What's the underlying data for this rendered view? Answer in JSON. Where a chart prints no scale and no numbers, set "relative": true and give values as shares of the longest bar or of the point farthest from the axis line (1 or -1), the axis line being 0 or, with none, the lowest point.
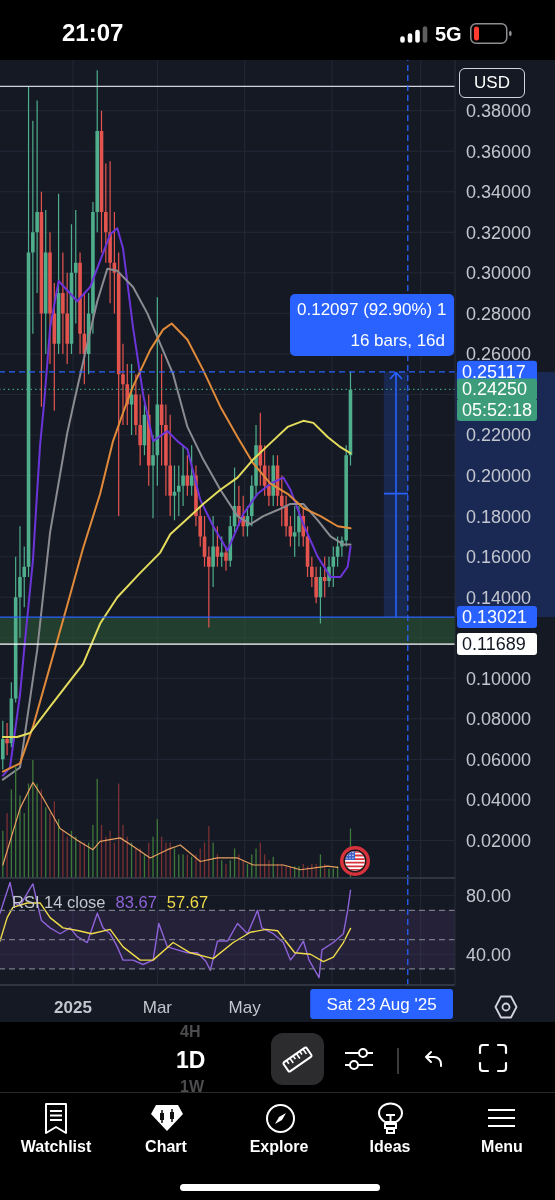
{
  "chart_data": [
    {
      "type": "other",
      "annotations": [
        "21:07",
        "5G"
      ]
    },
    {
      "type": "candlestick",
      "x": [
        "2024-11-13",
        "2024-11-16",
        "2024-11-19",
        "2024-11-22",
        "2024-11-25",
        "2024-11-28",
        "2024-12-01",
        "2024-12-04",
        "2024-12-07",
        "2024-12-10",
        "2024-12-13",
        "2024-12-16",
        "2024-12-19",
        "2024-12-22",
        "2024-12-25",
        "2024-12-28",
        "2024-12-31",
        "2025-01-03",
        "2025-01-06",
        "2025-01-09",
        "2025-01-12",
        "2025-01-15",
        "2025-01-18",
        "2025-01-21",
        "2025-01-24",
        "2025-01-27",
        "2025-01-30",
        "2025-02-02",
        "2025-02-05",
        "2025-02-08",
        "2025-02-11",
        "2025-02-14",
        "2025-02-17",
        "2025-02-20",
        "2025-02-23",
        "2025-02-26",
        "2025-03-01",
        "2025-03-04",
        "2025-03-07",
        "2025-03-10",
        "2025-03-13",
        "2025-03-16",
        "2025-03-19",
        "2025-03-22",
        "2025-03-25",
        "2025-03-28",
        "2025-03-31",
        "2025-04-03",
        "2025-04-06",
        "2025-04-09",
        "2025-04-12",
        "2025-04-15",
        "2025-04-18",
        "2025-04-21",
        "2025-04-24",
        "2025-04-27",
        "2025-04-30",
        "2025-05-03",
        "2025-05-06",
        "2025-05-09",
        "2025-05-12",
        "2025-05-15",
        "2025-05-18",
        "2025-05-21",
        "2025-05-24",
        "2025-05-27",
        "2025-05-30",
        "2025-06-02",
        "2025-06-05",
        "2025-06-08",
        "2025-06-11",
        "2025-06-14",
        "2025-06-17",
        "2025-06-20",
        "2025-06-23",
        "2025-06-26",
        "2025-06-29",
        "2025-07-02",
        "2025-07-05",
        "2025-07-08",
        "2025-07-11",
        "2025-07-14"
      ],
      "ohlc": [
        [
          0.06,
          0.079,
          0.055,
          0.07
        ],
        [
          0.07,
          0.078,
          0.062,
          0.068
        ],
        [
          0.068,
          0.098,
          0.066,
          0.09
        ],
        [
          0.09,
          0.16,
          0.088,
          0.14
        ],
        [
          0.14,
          0.175,
          0.12,
          0.15
        ],
        [
          0.15,
          0.165,
          0.135,
          0.155
        ],
        [
          0.155,
          0.392,
          0.15,
          0.31
        ],
        [
          0.31,
          0.375,
          0.27,
          0.32
        ],
        [
          0.32,
          0.385,
          0.29,
          0.33
        ],
        [
          0.33,
          0.34,
          0.234,
          0.28
        ],
        [
          0.28,
          0.331,
          0.26,
          0.31
        ],
        [
          0.31,
          0.32,
          0.255,
          0.28
        ],
        [
          0.28,
          0.295,
          0.232,
          0.265
        ],
        [
          0.265,
          0.339,
          0.26,
          0.29
        ],
        [
          0.29,
          0.31,
          0.26,
          0.28
        ],
        [
          0.28,
          0.3,
          0.255,
          0.265
        ],
        [
          0.265,
          0.324,
          0.26,
          0.3
        ],
        [
          0.3,
          0.331,
          0.275,
          0.305
        ],
        [
          0.305,
          0.31,
          0.26,
          0.27
        ],
        [
          0.27,
          0.29,
          0.245,
          0.26
        ],
        [
          0.26,
          0.29,
          0.25,
          0.28
        ],
        [
          0.28,
          0.335,
          0.27,
          0.33
        ],
        [
          0.33,
          0.4,
          0.32,
          0.37
        ],
        [
          0.37,
          0.38,
          0.31,
          0.33
        ],
        [
          0.33,
          0.354,
          0.305,
          0.32
        ],
        [
          0.32,
          0.355,
          0.285,
          0.305
        ],
        [
          0.305,
          0.33,
          0.28,
          0.3
        ],
        [
          0.3,
          0.31,
          0.18,
          0.25
        ],
        [
          0.25,
          0.265,
          0.225,
          0.245
        ],
        [
          0.245,
          0.255,
          0.225,
          0.235
        ],
        [
          0.235,
          0.255,
          0.22,
          0.24
        ],
        [
          0.24,
          0.25,
          0.22,
          0.225
        ],
        [
          0.225,
          0.24,
          0.205,
          0.215
        ],
        [
          0.215,
          0.235,
          0.21,
          0.23
        ],
        [
          0.23,
          0.24,
          0.195,
          0.205
        ],
        [
          0.205,
          0.22,
          0.179,
          0.21
        ],
        [
          0.21,
          0.288,
          0.195,
          0.235
        ],
        [
          0.235,
          0.26,
          0.205,
          0.225
        ],
        [
          0.225,
          0.235,
          0.19,
          0.205
        ],
        [
          0.205,
          0.23,
          0.18,
          0.19
        ],
        [
          0.19,
          0.205,
          0.178,
          0.192
        ],
        [
          0.192,
          0.205,
          0.18,
          0.195
        ],
        [
          0.195,
          0.215,
          0.185,
          0.2
        ],
        [
          0.2,
          0.21,
          0.19,
          0.195
        ],
        [
          0.195,
          0.215,
          0.19,
          0.2
        ],
        [
          0.2,
          0.205,
          0.175,
          0.18
        ],
        [
          0.18,
          0.185,
          0.165,
          0.17
        ],
        [
          0.17,
          0.18,
          0.155,
          0.16
        ],
        [
          0.16,
          0.165,
          0.125,
          0.155
        ],
        [
          0.155,
          0.18,
          0.145,
          0.165
        ],
        [
          0.165,
          0.175,
          0.155,
          0.16
        ],
        [
          0.16,
          0.17,
          0.155,
          0.162
        ],
        [
          0.162,
          0.165,
          0.153,
          0.158
        ],
        [
          0.158,
          0.18,
          0.155,
          0.175
        ],
        [
          0.175,
          0.204,
          0.172,
          0.185
        ],
        [
          0.185,
          0.195,
          0.175,
          0.18
        ],
        [
          0.18,
          0.19,
          0.17,
          0.175
        ],
        [
          0.175,
          0.185,
          0.17,
          0.18
        ],
        [
          0.18,
          0.2,
          0.175,
          0.195
        ],
        [
          0.195,
          0.225,
          0.19,
          0.215
        ],
        [
          0.215,
          0.231,
          0.195,
          0.205
        ],
        [
          0.205,
          0.215,
          0.19,
          0.195
        ],
        [
          0.195,
          0.205,
          0.185,
          0.19
        ],
        [
          0.19,
          0.21,
          0.185,
          0.205
        ],
        [
          0.205,
          0.21,
          0.185,
          0.19
        ],
        [
          0.19,
          0.2,
          0.175,
          0.185
        ],
        [
          0.185,
          0.19,
          0.17,
          0.175
        ],
        [
          0.175,
          0.18,
          0.165,
          0.17
        ],
        [
          0.17,
          0.185,
          0.16,
          0.172
        ],
        [
          0.172,
          0.185,
          0.165,
          0.18
        ],
        [
          0.18,
          0.184,
          0.165,
          0.17
        ],
        [
          0.17,
          0.175,
          0.15,
          0.155
        ],
        [
          0.155,
          0.16,
          0.145,
          0.15
        ],
        [
          0.15,
          0.155,
          0.137,
          0.14
        ],
        [
          0.14,
          0.155,
          0.127,
          0.15
        ],
        [
          0.15,
          0.16,
          0.14,
          0.148
        ],
        [
          0.148,
          0.16,
          0.145,
          0.155
        ],
        [
          0.155,
          0.165,
          0.145,
          0.16
        ],
        [
          0.16,
          0.17,
          0.155,
          0.165
        ],
        [
          0.165,
          0.17,
          0.16,
          0.168
        ],
        [
          0.168,
          0.215,
          0.165,
          0.21
        ],
        [
          0.21,
          0.2512,
          0.205,
          0.2425
        ]
      ],
      "colors": [
        "#4fae8c",
        "#e4544f",
        "#4fae8c",
        "#4fae8c",
        "#4fae8c",
        "#4fae8c",
        "#4fae8c",
        "#4fae8c",
        "#4fae8c",
        "#e4544f",
        "#4fae8c",
        "#e4544f",
        "#e4544f",
        "#4fae8c",
        "#e4544f",
        "#e4544f",
        "#4fae8c",
        "#4fae8c",
        "#e4544f",
        "#e4544f",
        "#4fae8c",
        "#4fae8c",
        "#4fae8c",
        "#e4544f",
        "#e4544f",
        "#e4544f",
        "#e4544f",
        "#e4544f",
        "#e4544f",
        "#e4544f",
        "#4fae8c",
        "#e4544f",
        "#e4544f",
        "#4fae8c",
        "#e4544f",
        "#4fae8c",
        "#4fae8c",
        "#e4544f",
        "#e4544f",
        "#e4544f",
        "#4fae8c",
        "#4fae8c",
        "#4fae8c",
        "#e4544f",
        "#4fae8c",
        "#e4544f",
        "#e4544f",
        "#e4544f",
        "#e4544f",
        "#4fae8c",
        "#e4544f",
        "#4fae8c",
        "#e4544f",
        "#4fae8c",
        "#4fae8c",
        "#e4544f",
        "#e4544f",
        "#4fae8c",
        "#4fae8c",
        "#4fae8c",
        "#e4544f",
        "#e4544f",
        "#e4544f",
        "#4fae8c",
        "#e4544f",
        "#e4544f",
        "#e4544f",
        "#e4544f",
        "#4fae8c",
        "#4fae8c",
        "#e4544f",
        "#e4544f",
        "#e4544f",
        "#e4544f",
        "#4fae8c",
        "#e4544f",
        "#4fae8c",
        "#4fae8c",
        "#4fae8c",
        "#4fae8c",
        "#4fae8c",
        "#4fae8c"
      ],
      "series": [
        {
          "type": "line",
          "color": "#6b35d9",
          "x": [
            "2024-11-13",
            "2024-11-18",
            "2024-11-25",
            "2024-11-28",
            "2024-12-04",
            "2024-12-09",
            "2024-12-12",
            "2024-12-16",
            "2024-12-22",
            "2025-01-04",
            "2025-01-13",
            "2025-01-20",
            "2025-01-27",
            "2025-02-01",
            "2025-02-05",
            "2025-02-12",
            "2025-02-19",
            "2025-02-26",
            "2025-03-08",
            "2025-03-15",
            "2025-03-22",
            "2025-03-31",
            "2025-04-09",
            "2025-04-19",
            "2025-04-30",
            "2025-05-10",
            "2025-05-19",
            "2025-05-28",
            "2025-06-02",
            "2025-06-11",
            "2025-06-21",
            "2025-06-30",
            "2025-07-07",
            "2025-07-12",
            "2025-07-14"
          ],
          "values": [
            0.052,
            0.056,
            0.092,
            0.115,
            0.158,
            0.215,
            0.237,
            0.273,
            0.296,
            0.286,
            0.293,
            0.306,
            0.319,
            0.322,
            0.312,
            0.273,
            0.24,
            0.217,
            0.222,
            0.217,
            0.213,
            0.188,
            0.175,
            0.163,
            0.181,
            0.191,
            0.196,
            0.199,
            0.193,
            0.176,
            0.16,
            0.15,
            0.15,
            0.155,
            0.165
          ]
        },
        {
          "type": "line",
          "color": "#8b8c92",
          "x": [
            "2024-11-13",
            "2024-11-25",
            "2024-12-07",
            "2024-12-16",
            "2024-12-28",
            "2025-01-02",
            "2025-01-11",
            "2025-01-18",
            "2025-01-25",
            "2025-02-01",
            "2025-02-12",
            "2025-02-22",
            "2025-03-03",
            "2025-03-12",
            "2025-03-22",
            "2025-04-02",
            "2025-04-14",
            "2025-04-26",
            "2025-05-05",
            "2025-05-14",
            "2025-05-24",
            "2025-06-02",
            "2025-06-11",
            "2025-06-21",
            "2025-06-30",
            "2025-07-09",
            "2025-07-14"
          ],
          "values": [
            0.05,
            0.056,
            0.114,
            0.172,
            0.221,
            0.237,
            0.265,
            0.286,
            0.302,
            0.301,
            0.293,
            0.28,
            0.265,
            0.25,
            0.224,
            0.208,
            0.193,
            0.18,
            0.176,
            0.18,
            0.183,
            0.186,
            0.186,
            0.178,
            0.17,
            0.166,
            0.166
          ]
        },
        {
          "type": "line",
          "color": "#e08a3a",
          "x": [
            "2024-11-13",
            "2024-11-25",
            "2024-12-04",
            "2024-12-16",
            "2024-12-28",
            "2025-01-08",
            "2025-01-20",
            "2025-01-29",
            "2025-02-05",
            "2025-02-12",
            "2025-02-24",
            "2025-03-05",
            "2025-03-11",
            "2025-03-22",
            "2025-04-02",
            "2025-04-14",
            "2025-04-26",
            "2025-05-07",
            "2025-05-19",
            "2025-05-31",
            "2025-06-11",
            "2025-06-23",
            "2025-07-05",
            "2025-07-14"
          ],
          "values": [
            0.054,
            0.058,
            0.076,
            0.106,
            0.136,
            0.164,
            0.191,
            0.217,
            0.231,
            0.244,
            0.262,
            0.272,
            0.275,
            0.267,
            0.252,
            0.234,
            0.219,
            0.206,
            0.196,
            0.191,
            0.184,
            0.18,
            0.175,
            0.174
          ]
        },
        {
          "type": "line",
          "color": "#e3dc5c",
          "x": [
            "2024-11-13",
            "2024-11-23",
            "2024-12-02",
            "2024-12-16",
            "2024-12-28",
            "2025-01-08",
            "2025-01-20",
            "2025-02-01",
            "2025-02-17",
            "2025-03-03",
            "2025-03-10",
            "2025-03-24",
            "2025-04-02",
            "2025-04-14",
            "2025-04-26",
            "2025-05-07",
            "2025-05-19",
            "2025-05-31",
            "2025-06-11",
            "2025-06-18",
            "2025-06-28",
            "2025-07-07",
            "2025-07-14"
          ],
          "values": [
            0.071,
            0.071,
            0.073,
            0.086,
            0.097,
            0.107,
            0.127,
            0.14,
            0.152,
            0.162,
            0.171,
            0.18,
            0.186,
            0.193,
            0.199,
            0.208,
            0.216,
            0.224,
            0.227,
            0.226,
            0.219,
            0.214,
            0.211
          ]
        }
      ],
      "xlim": [
        "2024-11-11",
        "2025-09-25"
      ],
      "xticks": [
        {
          "value": "2025-01-01",
          "label": null
        },
        {
          "value": "2025-03-01",
          "label": null
        },
        {
          "value": "2025-05-01",
          "label": null
        },
        {
          "value": "2025-07-01",
          "label": null
        },
        {
          "value": "2025-09-01",
          "label": null
        }
      ],
      "ylim": [
        0,
        0.405
      ],
      "yticks": [
        {
          "value": 0.02,
          "label": "0.02000"
        },
        {
          "value": 0.04,
          "label": "0.04000"
        },
        {
          "value": 0.06,
          "label": "0.06000"
        },
        {
          "value": 0.08,
          "label": "0.08000"
        },
        {
          "value": 0.1,
          "label": "0.10000"
        },
        {
          "value": 0.12,
          "label": null
        },
        {
          "value": 0.14,
          "label": "0.14000"
        },
        {
          "value": 0.16,
          "label": "0.16000"
        },
        {
          "value": 0.18,
          "label": "0.18000"
        },
        {
          "value": 0.2,
          "label": "0.20000"
        },
        {
          "value": 0.22,
          "label": "0.22000"
        },
        {
          "value": 0.24,
          "label": null
        },
        {
          "value": 0.26,
          "label": "0.26000"
        },
        {
          "value": 0.28,
          "label": "0.28000"
        },
        {
          "value": 0.3,
          "label": "0.30000"
        },
        {
          "value": 0.32,
          "label": "0.32000"
        },
        {
          "value": 0.34,
          "label": "0.34000"
        },
        {
          "value": 0.36,
          "label": "0.36000"
        },
        {
          "value": 0.38,
          "label": "0.38000"
        }
      ],
      "grid": true,
      "tick_labels": "y",
      "ref_lines": [
        {
          "axis": "y",
          "value": 0.392,
          "color": "#d1d4dc"
        },
        {
          "axis": "y",
          "value": 0.25117,
          "label": "0.25117",
          "color": "#2962ff",
          "line_style": "dashed"
        },
        {
          "axis": "y",
          "value": 0.2425,
          "label": "0.24250",
          "color": "#3d9c7a",
          "line_style": "dotted"
        },
        {
          "axis": "y",
          "value": 0.13021,
          "label": "0.13021",
          "color": "#2962ff"
        },
        {
          "axis": "y",
          "value": 0.11689,
          "label": "0.11689",
          "color": "#ffffff"
        },
        {
          "axis": "x",
          "value": "2025-08-23",
          "color": "#2962ff",
          "line_style": "dashed"
        }
      ],
      "bands": [
        {
          "axis": "y",
          "from": 0.11689,
          "to": 0.13021,
          "color": "#2e5c36"
        },
        {
          "axis": "y",
          "from": 0.13021,
          "to": 0.25117,
          "color": "#2962ff"
        }
      ],
      "annotations": [
        "USD",
        "0.12097 (92.90%) 1",
        "16 bars, 16d",
        "05:52:18"
      ]
    },
    {
      "type": "bar",
      "relative": true,
      "tick_labels": false,
      "x": [
        "2024-11-13",
        "2024-11-16",
        "2024-11-19",
        "2024-11-22",
        "2024-11-25",
        "2024-11-28",
        "2024-12-01",
        "2024-12-04",
        "2024-12-07",
        "2024-12-10",
        "2024-12-13",
        "2024-12-16",
        "2024-12-19",
        "2024-12-22",
        "2024-12-25",
        "2024-12-28",
        "2024-12-31",
        "2025-01-03",
        "2025-01-06",
        "2025-01-09",
        "2025-01-12",
        "2025-01-15",
        "2025-01-18",
        "2025-01-21",
        "2025-01-24",
        "2025-01-27",
        "2025-01-30",
        "2025-02-02",
        "2025-02-05",
        "2025-02-08",
        "2025-02-11",
        "2025-02-14",
        "2025-02-17",
        "2025-02-20",
        "2025-02-23",
        "2025-02-26",
        "2025-03-01",
        "2025-03-04",
        "2025-03-07",
        "2025-03-10",
        "2025-03-13",
        "2025-03-16",
        "2025-03-19",
        "2025-03-22",
        "2025-03-25",
        "2025-03-28",
        "2025-03-31",
        "2025-04-03",
        "2025-04-06",
        "2025-04-09",
        "2025-04-12",
        "2025-04-15",
        "2025-04-18",
        "2025-04-21",
        "2025-04-24",
        "2025-04-27",
        "2025-04-30",
        "2025-05-03",
        "2025-05-06",
        "2025-05-09",
        "2025-05-12",
        "2025-05-15",
        "2025-05-18",
        "2025-05-21",
        "2025-05-24",
        "2025-05-27",
        "2025-05-30",
        "2025-06-02",
        "2025-06-05",
        "2025-06-08",
        "2025-06-11",
        "2025-06-14",
        "2025-06-17",
        "2025-06-20",
        "2025-06-23",
        "2025-06-26",
        "2025-06-29",
        "2025-07-02",
        "2025-07-05",
        "2025-07-08",
        "2025-07-11",
        "2025-07-14"
      ],
      "xlim": [
        "2024-11-11",
        "2025-09-25"
      ],
      "series": [
        {
          "type": "bar",
          "values": [
            0.4,
            0.55,
            0.75,
            0.95,
            0.7,
            0.55,
            0.8,
            1,
            0.8,
            0.75,
            0.6,
            0.55,
            0.65,
            0.5,
            0.4,
            0.35,
            0.4,
            0.35,
            0.3,
            0.3,
            0.3,
            0.45,
            0.84,
            0.45,
            0.35,
            0.4,
            0.3,
            0.8,
            0.45,
            0.35,
            0.3,
            0.25,
            0.25,
            0.2,
            0.3,
            0.35,
            0.5,
            0.35,
            0.3,
            0.3,
            0.25,
            0.2,
            0.2,
            0.2,
            0.18,
            0.2,
            0.25,
            0.3,
            0.44,
            0.3,
            0.2,
            0.15,
            0.12,
            0.15,
            0.25,
            0.2,
            0.15,
            0.12,
            0.2,
            0.25,
            0.3,
            0.2,
            0.15,
            0.18,
            0.12,
            0.12,
            0.1,
            0.1,
            0.1,
            0.1,
            0.12,
            0.1,
            0.12,
            0.12,
            0.2,
            0.12,
            0.08,
            0.08,
            0.1,
            null,
            null,
            0.42
          ],
          "colors": [
            "#3e7b3a",
            "#7b3034",
            "#3e7b3a",
            "#3e7b3a",
            "#3e7b3a",
            "#3e7b3a",
            "#3e7b3a",
            "#3e7b3a",
            "#3e7b3a",
            "#7b3034",
            "#3e7b3a",
            "#7b3034",
            "#7b3034",
            "#3e7b3a",
            "#7b3034",
            "#7b3034",
            "#3e7b3a",
            "#3e7b3a",
            "#7b3034",
            "#7b3034",
            "#3e7b3a",
            "#3e7b3a",
            "#3e7b3a",
            "#7b3034",
            "#7b3034",
            "#7b3034",
            "#7b3034",
            "#7b3034",
            "#7b3034",
            "#7b3034",
            "#3e7b3a",
            "#7b3034",
            "#7b3034",
            "#3e7b3a",
            "#7b3034",
            "#3e7b3a",
            "#3e7b3a",
            "#7b3034",
            "#7b3034",
            "#7b3034",
            "#3e7b3a",
            "#3e7b3a",
            "#3e7b3a",
            "#7b3034",
            "#3e7b3a",
            "#7b3034",
            "#7b3034",
            "#7b3034",
            "#7b3034",
            "#3e7b3a",
            "#7b3034",
            "#3e7b3a",
            "#7b3034",
            "#3e7b3a",
            "#3e7b3a",
            "#7b3034",
            "#7b3034",
            "#3e7b3a",
            "#3e7b3a",
            "#3e7b3a",
            "#7b3034",
            "#7b3034",
            "#7b3034",
            "#3e7b3a",
            "#7b3034",
            "#7b3034",
            "#7b3034",
            "#7b3034",
            "#3e7b3a",
            "#3e7b3a",
            "#7b3034",
            "#7b3034",
            "#7b3034",
            "#7b3034",
            "#3e7b3a",
            "#7b3034",
            "#3e7b3a",
            "#3e7b3a",
            "#3e7b3a",
            "#3e7b3a",
            "#3e7b3a",
            "#3e7b3a"
          ]
        },
        {
          "type": "line",
          "color": "#e8a060",
          "x": [
            "2024-11-13",
            "2024-11-25",
            "2024-12-04",
            "2024-12-11",
            "2024-12-23",
            "2025-01-04",
            "2025-01-15",
            "2025-01-20",
            "2025-02-03",
            "2025-02-12",
            "2025-02-24",
            "2025-03-08",
            "2025-03-17",
            "2025-03-31",
            "2025-04-12",
            "2025-04-26",
            "2025-05-07",
            "2025-05-28",
            "2025-06-09",
            "2025-06-28",
            "2025-07-05"
          ],
          "values": [
            0.11,
            0.59,
            0.81,
            0.68,
            0.42,
            0.32,
            0.24,
            0.31,
            0.34,
            0.27,
            0.17,
            0.24,
            0.28,
            0.14,
            0.17,
            0.17,
            0.11,
            0.11,
            0.07,
            0.1,
            0.09
          ]
        }
      ]
    },
    {
      "type": "line",
      "title": "RSI 14 close",
      "series": [
        {
          "color": "#8e63d9",
          "x": [
            "2024-11-11",
            "2024-11-14",
            "2024-11-18",
            "2024-11-21",
            "2024-11-25",
            "2024-12-02",
            "2024-12-04",
            "2024-12-07",
            "2024-12-10",
            "2024-12-16",
            "2024-12-23",
            "2024-12-30",
            "2025-01-04",
            "2025-01-11",
            "2025-01-18",
            "2025-01-22",
            "2025-01-27",
            "2025-02-01",
            "2025-02-05",
            "2025-02-12",
            "2025-02-19",
            "2025-02-26",
            "2025-03-02",
            "2025-03-08",
            "2025-03-15",
            "2025-03-22",
            "2025-03-29",
            "2025-04-04",
            "2025-04-07",
            "2025-04-12",
            "2025-04-19",
            "2025-04-26",
            "2025-05-03",
            "2025-05-10",
            "2025-05-13",
            "2025-05-21",
            "2025-05-28",
            "2025-06-02",
            "2025-06-06",
            "2025-06-11",
            "2025-06-15",
            "2025-06-22",
            "2025-06-24",
            "2025-07-02",
            "2025-07-09",
            "2025-07-12",
            "2025-07-14"
          ],
          "values": [
            68,
            77,
            89,
            75,
            73,
            85,
            88,
            75,
            63,
            58,
            54,
            58,
            52,
            48,
            68,
            58,
            54,
            45,
            36,
            36,
            33,
            36,
            61,
            45,
            43,
            41,
            41,
            35,
            29,
            49,
            49,
            61,
            54,
            70,
            58,
            54,
            48,
            36,
            41,
            49,
            36,
            24,
            43,
            48,
            54,
            70,
            83.67
          ]
        },
        {
          "color": "#f0dc4a",
          "x": [
            "2024-11-11",
            "2024-11-16",
            "2024-11-20",
            "2024-11-30",
            "2024-12-09",
            "2024-12-16",
            "2024-12-25",
            "2025-01-05",
            "2025-01-14",
            "2025-01-27",
            "2025-02-05",
            "2025-02-17",
            "2025-02-26",
            "2025-03-12",
            "2025-03-24",
            "2025-04-09",
            "2025-04-23",
            "2025-05-05",
            "2025-05-16",
            "2025-05-24",
            "2025-06-05",
            "2025-06-16",
            "2025-06-25",
            "2025-07-02",
            "2025-07-09",
            "2025-07-14"
          ],
          "values": [
            49,
            65,
            72,
            75,
            75,
            65,
            58,
            56,
            54,
            57,
            45,
            36,
            36,
            48,
            41,
            37,
            48,
            55,
            57,
            56,
            41,
            40,
            35,
            38,
            48,
            57.67
          ]
        }
      ],
      "xlim": [
        "2024-11-11",
        "2025-09-25"
      ],
      "xticks": [
        {
          "value": "2025-01-01",
          "label": "2025"
        },
        {
          "value": "2025-03-01",
          "label": "Mar"
        },
        {
          "value": "2025-05-01",
          "label": "May"
        },
        {
          "value": "2025-07-01",
          "label": null
        },
        {
          "value": "2025-09-01",
          "label": null
        }
      ],
      "ylim": [
        19,
        90
      ],
      "yticks": [
        {
          "value": 40,
          "label": "40.00"
        },
        {
          "value": 80,
          "label": "80.00"
        }
      ],
      "grid": true,
      "ref_lines": [
        {
          "axis": "y",
          "value": 70,
          "color": "#787b86",
          "line_style": "dashed"
        },
        {
          "axis": "y",
          "value": 50,
          "color": "#787b86",
          "line_style": "dashed"
        },
        {
          "axis": "y",
          "value": 30,
          "color": "#787b86",
          "line_style": "dashed"
        },
        {
          "axis": "x",
          "value": "2025-08-23",
          "label": "Sat 23 Aug '25",
          "color": "#2962ff",
          "line_style": "dashed"
        }
      ],
      "bands": [
        {
          "axis": "y",
          "from": 30,
          "to": 70,
          "color": "#7e57c2"
        }
      ],
      "annotations": [
        "83.67",
        "57.67"
      ]
    },
    {
      "type": "other",
      "annotations": [
        "4H",
        "1D",
        "1W",
        "Watchlist",
        "Chart",
        "Explore",
        "Ideas",
        "Menu"
      ]
    }
  ]
}
